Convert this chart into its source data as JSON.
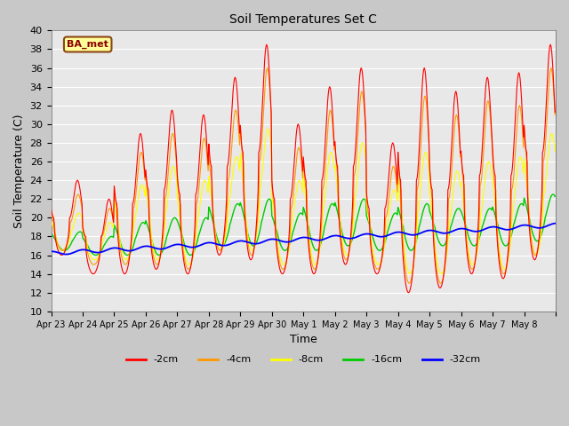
{
  "title": "Soil Temperatures Set C",
  "xlabel": "Time",
  "ylabel": "Soil Temperature (C)",
  "ylim": [
    10,
    40
  ],
  "legend_labels": [
    "-2cm",
    "-4cm",
    "-8cm",
    "-16cm",
    "-32cm"
  ],
  "colors": [
    "#ff0000",
    "#ff9900",
    "#ffff00",
    "#00cc00",
    "#0000ff"
  ],
  "annotation_text": "BA_met",
  "annotation_box_color": "#ffff99",
  "annotation_box_edge": "#8b4513",
  "xtick_labels": [
    "Apr 23",
    "Apr 24",
    "Apr 25",
    "Apr 26",
    "Apr 27",
    "Apr 28",
    "Apr 29",
    "Apr 30",
    "May 1",
    "May 2",
    "May 3",
    "May 4",
    "May 5",
    "May 6",
    "May 7",
    "May 8"
  ],
  "n_days": 16,
  "points_per_day": 48,
  "figsize": [
    6.4,
    4.8
  ],
  "dpi": 100
}
